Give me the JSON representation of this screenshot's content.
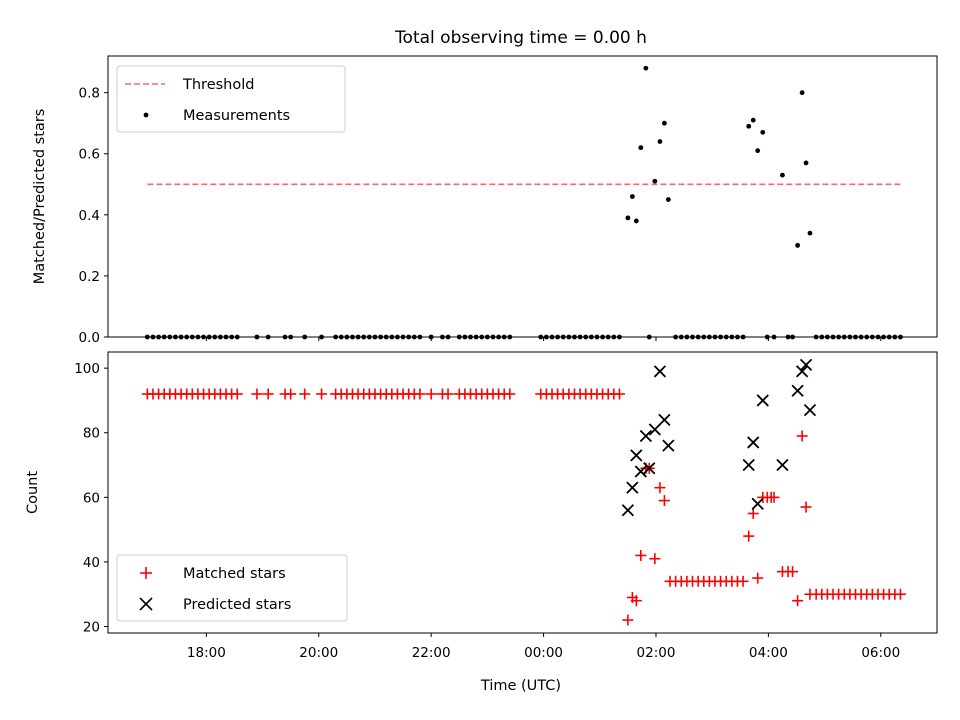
{
  "chart_data": [
    {
      "type": "scatter",
      "title": "Total observing time = 0.00 h",
      "ylabel": "Matched/Predicted stars",
      "xlabel": "",
      "xlim": [
        16.25,
        31.0
      ],
      "ylim": [
        0.0,
        0.92
      ],
      "yticks": [
        0.0,
        0.2,
        0.4,
        0.6,
        0.8
      ],
      "ytick_labels": [
        "0.0",
        "0.2",
        "0.4",
        "0.6",
        "0.8"
      ],
      "grid": false,
      "legend_position": "top-left",
      "threshold": {
        "name": "Threshold",
        "color": "#ff6666",
        "style": "dashed",
        "x": [
          16.95,
          30.35
        ],
        "y": 0.5
      },
      "series": [
        {
          "name": "Measurements",
          "marker": "dot",
          "color": "#000000",
          "points": [
            [
              16.95,
              0
            ],
            [
              17.05,
              0
            ],
            [
              17.15,
              0
            ],
            [
              17.25,
              0
            ],
            [
              17.35,
              0
            ],
            [
              17.45,
              0
            ],
            [
              17.55,
              0
            ],
            [
              17.65,
              0
            ],
            [
              17.75,
              0
            ],
            [
              17.85,
              0
            ],
            [
              17.95,
              0
            ],
            [
              18.05,
              0
            ],
            [
              18.15,
              0
            ],
            [
              18.25,
              0
            ],
            [
              18.35,
              0
            ],
            [
              18.45,
              0
            ],
            [
              18.55,
              0
            ],
            [
              18.9,
              0
            ],
            [
              19.1,
              0
            ],
            [
              19.4,
              0
            ],
            [
              19.5,
              0
            ],
            [
              19.75,
              0
            ],
            [
              20.05,
              0
            ],
            [
              20.3,
              0
            ],
            [
              20.4,
              0
            ],
            [
              20.5,
              0
            ],
            [
              20.6,
              0
            ],
            [
              20.7,
              0
            ],
            [
              20.8,
              0
            ],
            [
              20.9,
              0
            ],
            [
              21.0,
              0
            ],
            [
              21.1,
              0
            ],
            [
              21.2,
              0
            ],
            [
              21.3,
              0
            ],
            [
              21.4,
              0
            ],
            [
              21.5,
              0
            ],
            [
              21.6,
              0
            ],
            [
              21.7,
              0
            ],
            [
              21.8,
              0
            ],
            [
              22.0,
              0
            ],
            [
              22.2,
              0
            ],
            [
              22.3,
              0
            ],
            [
              22.5,
              0
            ],
            [
              22.6,
              0
            ],
            [
              22.7,
              0
            ],
            [
              22.8,
              0
            ],
            [
              22.9,
              0
            ],
            [
              23.0,
              0
            ],
            [
              23.1,
              0
            ],
            [
              23.2,
              0
            ],
            [
              23.3,
              0
            ],
            [
              23.4,
              0
            ],
            [
              23.95,
              0
            ],
            [
              24.05,
              0
            ],
            [
              24.15,
              0
            ],
            [
              24.25,
              0
            ],
            [
              24.35,
              0
            ],
            [
              24.45,
              0
            ],
            [
              24.55,
              0
            ],
            [
              24.65,
              0
            ],
            [
              24.75,
              0
            ],
            [
              24.85,
              0
            ],
            [
              24.95,
              0
            ],
            [
              25.05,
              0
            ],
            [
              25.15,
              0
            ],
            [
              25.25,
              0
            ],
            [
              25.35,
              0
            ],
            [
              25.5,
              0.39
            ],
            [
              25.58,
              0.46
            ],
            [
              25.65,
              0.38
            ],
            [
              25.73,
              0.62
            ],
            [
              25.82,
              0.88
            ],
            [
              25.88,
              0.0
            ],
            [
              25.98,
              0.51
            ],
            [
              26.07,
              0.64
            ],
            [
              26.15,
              0.7
            ],
            [
              26.22,
              0.45
            ],
            [
              26.35,
              0
            ],
            [
              26.45,
              0
            ],
            [
              26.55,
              0
            ],
            [
              26.65,
              0
            ],
            [
              26.75,
              0
            ],
            [
              26.85,
              0
            ],
            [
              26.95,
              0
            ],
            [
              27.05,
              0
            ],
            [
              27.15,
              0
            ],
            [
              27.25,
              0
            ],
            [
              27.35,
              0
            ],
            [
              27.45,
              0
            ],
            [
              27.55,
              0
            ],
            [
              27.65,
              0.69
            ],
            [
              27.73,
              0.71
            ],
            [
              27.81,
              0.61
            ],
            [
              27.9,
              0.67
            ],
            [
              27.98,
              0
            ],
            [
              28.1,
              0
            ],
            [
              28.25,
              0.53
            ],
            [
              28.35,
              0
            ],
            [
              28.43,
              0
            ],
            [
              28.52,
              0.3
            ],
            [
              28.6,
              0.8
            ],
            [
              28.67,
              0.57
            ],
            [
              28.74,
              0.34
            ],
            [
              28.85,
              0
            ],
            [
              28.95,
              0
            ],
            [
              29.05,
              0
            ],
            [
              29.15,
              0
            ],
            [
              29.25,
              0
            ],
            [
              29.35,
              0
            ],
            [
              29.45,
              0
            ],
            [
              29.55,
              0
            ],
            [
              29.65,
              0
            ],
            [
              29.75,
              0
            ],
            [
              29.85,
              0
            ],
            [
              29.95,
              0
            ],
            [
              30.05,
              0
            ],
            [
              30.15,
              0
            ],
            [
              30.25,
              0
            ],
            [
              30.35,
              0
            ]
          ]
        }
      ]
    },
    {
      "type": "scatter",
      "title": "",
      "xlabel": "Time (UTC)",
      "ylabel": "Count",
      "xlim": [
        16.25,
        31.0
      ],
      "ylim": [
        18,
        105
      ],
      "xticks": [
        18,
        20,
        22,
        24,
        26,
        28,
        30
      ],
      "xtick_labels": [
        "18:00",
        "20:00",
        "22:00",
        "00:00",
        "02:00",
        "04:00",
        "06:00"
      ],
      "yticks": [
        20,
        40,
        60,
        80,
        100
      ],
      "ytick_labels": [
        "20",
        "40",
        "60",
        "80",
        "100"
      ],
      "grid": false,
      "legend_position": "bottom-left",
      "series": [
        {
          "name": "Matched stars",
          "marker": "plus",
          "color": "#ff0000",
          "points": [
            [
              16.95,
              92
            ],
            [
              17.05,
              92
            ],
            [
              17.15,
              92
            ],
            [
              17.25,
              92
            ],
            [
              17.35,
              92
            ],
            [
              17.45,
              92
            ],
            [
              17.55,
              92
            ],
            [
              17.65,
              92
            ],
            [
              17.75,
              92
            ],
            [
              17.85,
              92
            ],
            [
              17.95,
              92
            ],
            [
              18.05,
              92
            ],
            [
              18.15,
              92
            ],
            [
              18.25,
              92
            ],
            [
              18.35,
              92
            ],
            [
              18.45,
              92
            ],
            [
              18.55,
              92
            ],
            [
              18.9,
              92
            ],
            [
              19.1,
              92
            ],
            [
              19.4,
              92
            ],
            [
              19.5,
              92
            ],
            [
              19.75,
              92
            ],
            [
              20.05,
              92
            ],
            [
              20.3,
              92
            ],
            [
              20.4,
              92
            ],
            [
              20.5,
              92
            ],
            [
              20.6,
              92
            ],
            [
              20.7,
              92
            ],
            [
              20.8,
              92
            ],
            [
              20.9,
              92
            ],
            [
              21.0,
              92
            ],
            [
              21.1,
              92
            ],
            [
              21.2,
              92
            ],
            [
              21.3,
              92
            ],
            [
              21.4,
              92
            ],
            [
              21.5,
              92
            ],
            [
              21.6,
              92
            ],
            [
              21.7,
              92
            ],
            [
              21.8,
              92
            ],
            [
              22.0,
              92
            ],
            [
              22.2,
              92
            ],
            [
              22.3,
              92
            ],
            [
              22.5,
              92
            ],
            [
              22.6,
              92
            ],
            [
              22.7,
              92
            ],
            [
              22.8,
              92
            ],
            [
              22.9,
              92
            ],
            [
              23.0,
              92
            ],
            [
              23.1,
              92
            ],
            [
              23.2,
              92
            ],
            [
              23.3,
              92
            ],
            [
              23.4,
              92
            ],
            [
              23.95,
              92
            ],
            [
              24.05,
              92
            ],
            [
              24.15,
              92
            ],
            [
              24.25,
              92
            ],
            [
              24.35,
              92
            ],
            [
              24.45,
              92
            ],
            [
              24.55,
              92
            ],
            [
              24.65,
              92
            ],
            [
              24.75,
              92
            ],
            [
              24.85,
              92
            ],
            [
              24.95,
              92
            ],
            [
              25.05,
              92
            ],
            [
              25.15,
              92
            ],
            [
              25.25,
              92
            ],
            [
              25.35,
              92
            ],
            [
              25.5,
              22
            ],
            [
              25.58,
              29
            ],
            [
              25.65,
              28
            ],
            [
              25.73,
              42
            ],
            [
              25.82,
              69
            ],
            [
              25.88,
              69
            ],
            [
              25.98,
              41
            ],
            [
              26.07,
              63
            ],
            [
              26.15,
              59
            ],
            [
              26.25,
              34
            ],
            [
              26.35,
              34
            ],
            [
              26.45,
              34
            ],
            [
              26.55,
              34
            ],
            [
              26.65,
              34
            ],
            [
              26.75,
              34
            ],
            [
              26.85,
              34
            ],
            [
              26.95,
              34
            ],
            [
              27.05,
              34
            ],
            [
              27.15,
              34
            ],
            [
              27.25,
              34
            ],
            [
              27.35,
              34
            ],
            [
              27.45,
              34
            ],
            [
              27.55,
              34
            ],
            [
              27.65,
              48
            ],
            [
              27.73,
              55
            ],
            [
              27.81,
              35
            ],
            [
              27.9,
              60
            ],
            [
              27.98,
              60
            ],
            [
              28.05,
              60
            ],
            [
              28.1,
              60
            ],
            [
              28.25,
              37
            ],
            [
              28.35,
              37
            ],
            [
              28.43,
              37
            ],
            [
              28.52,
              28
            ],
            [
              28.6,
              79
            ],
            [
              28.67,
              57
            ],
            [
              28.74,
              30
            ],
            [
              28.85,
              30
            ],
            [
              28.95,
              30
            ],
            [
              29.05,
              30
            ],
            [
              29.15,
              30
            ],
            [
              29.25,
              30
            ],
            [
              29.35,
              30
            ],
            [
              29.45,
              30
            ],
            [
              29.55,
              30
            ],
            [
              29.65,
              30
            ],
            [
              29.75,
              30
            ],
            [
              29.85,
              30
            ],
            [
              29.95,
              30
            ],
            [
              30.05,
              30
            ],
            [
              30.15,
              30
            ],
            [
              30.25,
              30
            ],
            [
              30.35,
              30
            ]
          ]
        },
        {
          "name": "Predicted stars",
          "marker": "x",
          "color": "#000000",
          "points": [
            [
              25.5,
              56
            ],
            [
              25.58,
              63
            ],
            [
              25.65,
              73
            ],
            [
              25.73,
              68
            ],
            [
              25.82,
              79
            ],
            [
              25.88,
              69
            ],
            [
              25.98,
              81
            ],
            [
              26.07,
              99
            ],
            [
              26.15,
              84
            ],
            [
              26.22,
              76
            ],
            [
              27.65,
              70
            ],
            [
              27.73,
              77
            ],
            [
              27.81,
              58
            ],
            [
              27.9,
              90
            ],
            [
              28.25,
              70
            ],
            [
              28.52,
              93
            ],
            [
              28.6,
              99
            ],
            [
              28.67,
              101
            ],
            [
              28.74,
              87
            ]
          ]
        }
      ]
    }
  ]
}
